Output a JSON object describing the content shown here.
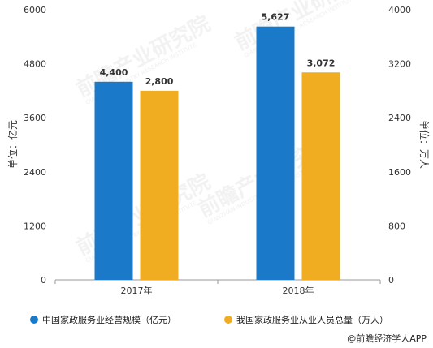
{
  "chart_data": {
    "type": "bar",
    "categories": [
      "2017年",
      "2018年"
    ],
    "series": [
      {
        "name": "中国家政服务业经营规模（亿元）",
        "values": [
          4400,
          5627
        ],
        "labels": [
          "4,400",
          "5,627"
        ],
        "axis": "left",
        "color": "#1a7ac9"
      },
      {
        "name": "我国家政服务业从业人员总量（万人）",
        "values": [
          2800,
          3072
        ],
        "labels": [
          "2,800",
          "3,072"
        ],
        "axis": "right",
        "color": "#f0ad22"
      }
    ],
    "ylabel": "单位：亿元",
    "ylabel_right": "单位：万人",
    "ylim": [
      0,
      6000
    ],
    "ylim_right": [
      0,
      4000
    ],
    "yticks": [
      "0",
      "1200",
      "2400",
      "3600",
      "4800",
      "6000"
    ],
    "yticks_right": [
      "0",
      "800",
      "1600",
      "2400",
      "3200",
      "4000"
    ],
    "grid": false,
    "legend_position": "bottom"
  },
  "source_text": "@前瞻经济学人APP",
  "watermark": "前瞻产业研究院",
  "watermark_sub": "QIANZHAN INDUSTRY RESEARCH INSTITUTE"
}
